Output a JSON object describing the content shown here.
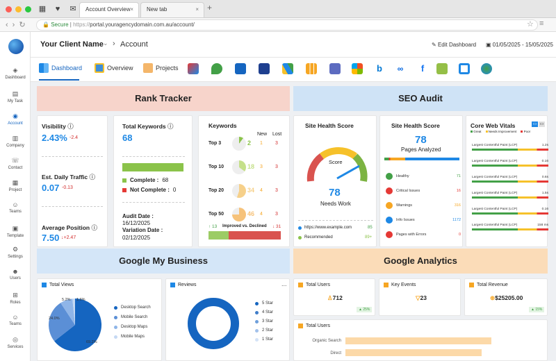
{
  "browser": {
    "tabs": [
      {
        "label": "Account Overview"
      },
      {
        "label": "New tab"
      }
    ],
    "secure_label": "Secure",
    "url_proto": "https://",
    "url_rest": "portal.youragencydomain.com.au/account/"
  },
  "sidebar": {
    "items": [
      {
        "label": "Dashboard",
        "icon": "dashboard-icon"
      },
      {
        "label": "My Task",
        "icon": "task-icon"
      },
      {
        "label": "Account",
        "icon": "account-icon"
      },
      {
        "label": "Company",
        "icon": "company-icon"
      },
      {
        "label": "Contact",
        "icon": "contact-icon"
      },
      {
        "label": "Project",
        "icon": "project-icon"
      },
      {
        "label": "Teams",
        "icon": "teams-icon"
      },
      {
        "label": "Template",
        "icon": "template-icon"
      },
      {
        "label": "Settings",
        "icon": "settings-icon"
      },
      {
        "label": "Users",
        "icon": "users-icon"
      },
      {
        "label": "Roles",
        "icon": "roles-icon"
      },
      {
        "label": "Teams",
        "icon": "teams-icon"
      },
      {
        "label": "Services",
        "icon": "services-icon"
      }
    ]
  },
  "header": {
    "client": "Your Client Name",
    "crumb": "Account",
    "edit_dashboard": "Edit Dashboard",
    "date_range": "01/05/2025 - 15/05/2025"
  },
  "nav_tabs": [
    {
      "label": "Dashboard"
    },
    {
      "label": "Overview"
    },
    {
      "label": "Projects"
    }
  ],
  "sections": {
    "rank_tracker": "Rank Tracker",
    "seo_audit": "SEO Audit",
    "gmb": "Google My Business",
    "ga": "Google Analytics"
  },
  "rank": {
    "visibility_label": "Visibility",
    "visibility_value": "2.43%",
    "visibility_delta": "-2.4",
    "traffic_label": "Est. Daily Traffic",
    "traffic_value": "0.07",
    "traffic_delta": "-0.13",
    "position_label": "Average Position",
    "position_value": "7.50",
    "position_delta": "↓+2.47",
    "total_kw_label": "Total Keywords",
    "total_kw_value": "68",
    "complete_label": "Complete :",
    "complete_value": "68",
    "not_complete_label": "Not Complete :",
    "not_complete_value": "0",
    "audit_date_label": "Audit Date :",
    "audit_date_value": "16/12/2025",
    "variation_label": "Variation Date :",
    "variation_value": "02/12/2025",
    "keywords_label": "Keywords",
    "new_label": "New",
    "lost_label": "Lost",
    "rows": [
      {
        "label": "Top 3",
        "count": "2",
        "new": "1",
        "lost": "3"
      },
      {
        "label": "Top 10",
        "count": "18",
        "new": "3",
        "lost": "3"
      },
      {
        "label": "Top 20",
        "count": "34",
        "new": "4",
        "lost": "3"
      },
      {
        "label": "Top 50",
        "count": "46",
        "new": "4",
        "lost": "3"
      }
    ],
    "improved": "↑ 13",
    "improved_label": "Improved vs. Declined",
    "declined": "↓ 31"
  },
  "seo": {
    "health_label": "Site Health Score",
    "gauge_label": "Score",
    "gauge_value": "78",
    "gauge_status": "Needs Work",
    "site_url": "https://www.example.com",
    "site_url_value": "85",
    "recommended": "Recommended",
    "recommended_value": "89+",
    "health2_label": "Site Health Score",
    "pages_value": "78",
    "pages_label": "Pages Analyzed",
    "issues": [
      {
        "label": "Healthy",
        "value": "71",
        "color": "#43a047"
      },
      {
        "label": "Critical Issues",
        "value": "16",
        "color": "#e53935"
      },
      {
        "label": "Warnings",
        "value": "316",
        "color": "#f6a623"
      },
      {
        "label": "Info Issues",
        "value": "1172",
        "color": "#1e88e5"
      },
      {
        "label": "Pages with Errors",
        "value": "0",
        "color": "#e53935"
      }
    ],
    "cwv_label": "Core Web Vitals",
    "cwv_legend": [
      "Great",
      "Needs Improvement",
      "Poor"
    ],
    "cwv_rows": [
      {
        "label": "Largest Contentful Paint (LCP)",
        "value": "1.2s"
      },
      {
        "label": "Largest Contentful Paint (LCP)",
        "value": "0.16"
      },
      {
        "label": "Largest Contentful Paint (LCP)",
        "value": "0.6s"
      },
      {
        "label": "Largest Contentful Paint (LCP)",
        "value": "1.5s"
      },
      {
        "label": "Largest Contentful Paint (LCP)",
        "value": "0.16"
      },
      {
        "label": "Largest Contentful Paint (LCP)",
        "value": "158 ms"
      }
    ]
  },
  "gmb": {
    "views_label": "Total Views",
    "views_legend": [
      "Desktop Search",
      "Mobile Search",
      "Desktop Maps",
      "Mobile Maps"
    ],
    "views_pct": [
      "69.2%",
      "24.0%",
      "5.2%",
      "1.6%"
    ],
    "reviews_label": "Reviews",
    "reviews_more": "...",
    "reviews_legend": [
      "5 Star",
      "4 Star",
      "3 Star",
      "2 Star",
      "1 Star"
    ]
  },
  "ga": {
    "users_label": "Total Users",
    "users_value": "712",
    "users_badge": "▲ 25%",
    "events_label": "Key Events",
    "events_value": "23",
    "revenue_label": "Total Revenue",
    "revenue_value": "$25205.00",
    "revenue_badge": "▲ 15%",
    "users_chart_label": "Total Users",
    "users_chart_rows": [
      "Organic Search",
      "Direct"
    ]
  },
  "colors": {
    "rank_banner": "#f7d4cb",
    "seo_banner": "#cfe3f6",
    "gmb_banner": "#d4e6f8",
    "ga_banner": "#fbdcb8",
    "accent": "#1e88e5"
  }
}
